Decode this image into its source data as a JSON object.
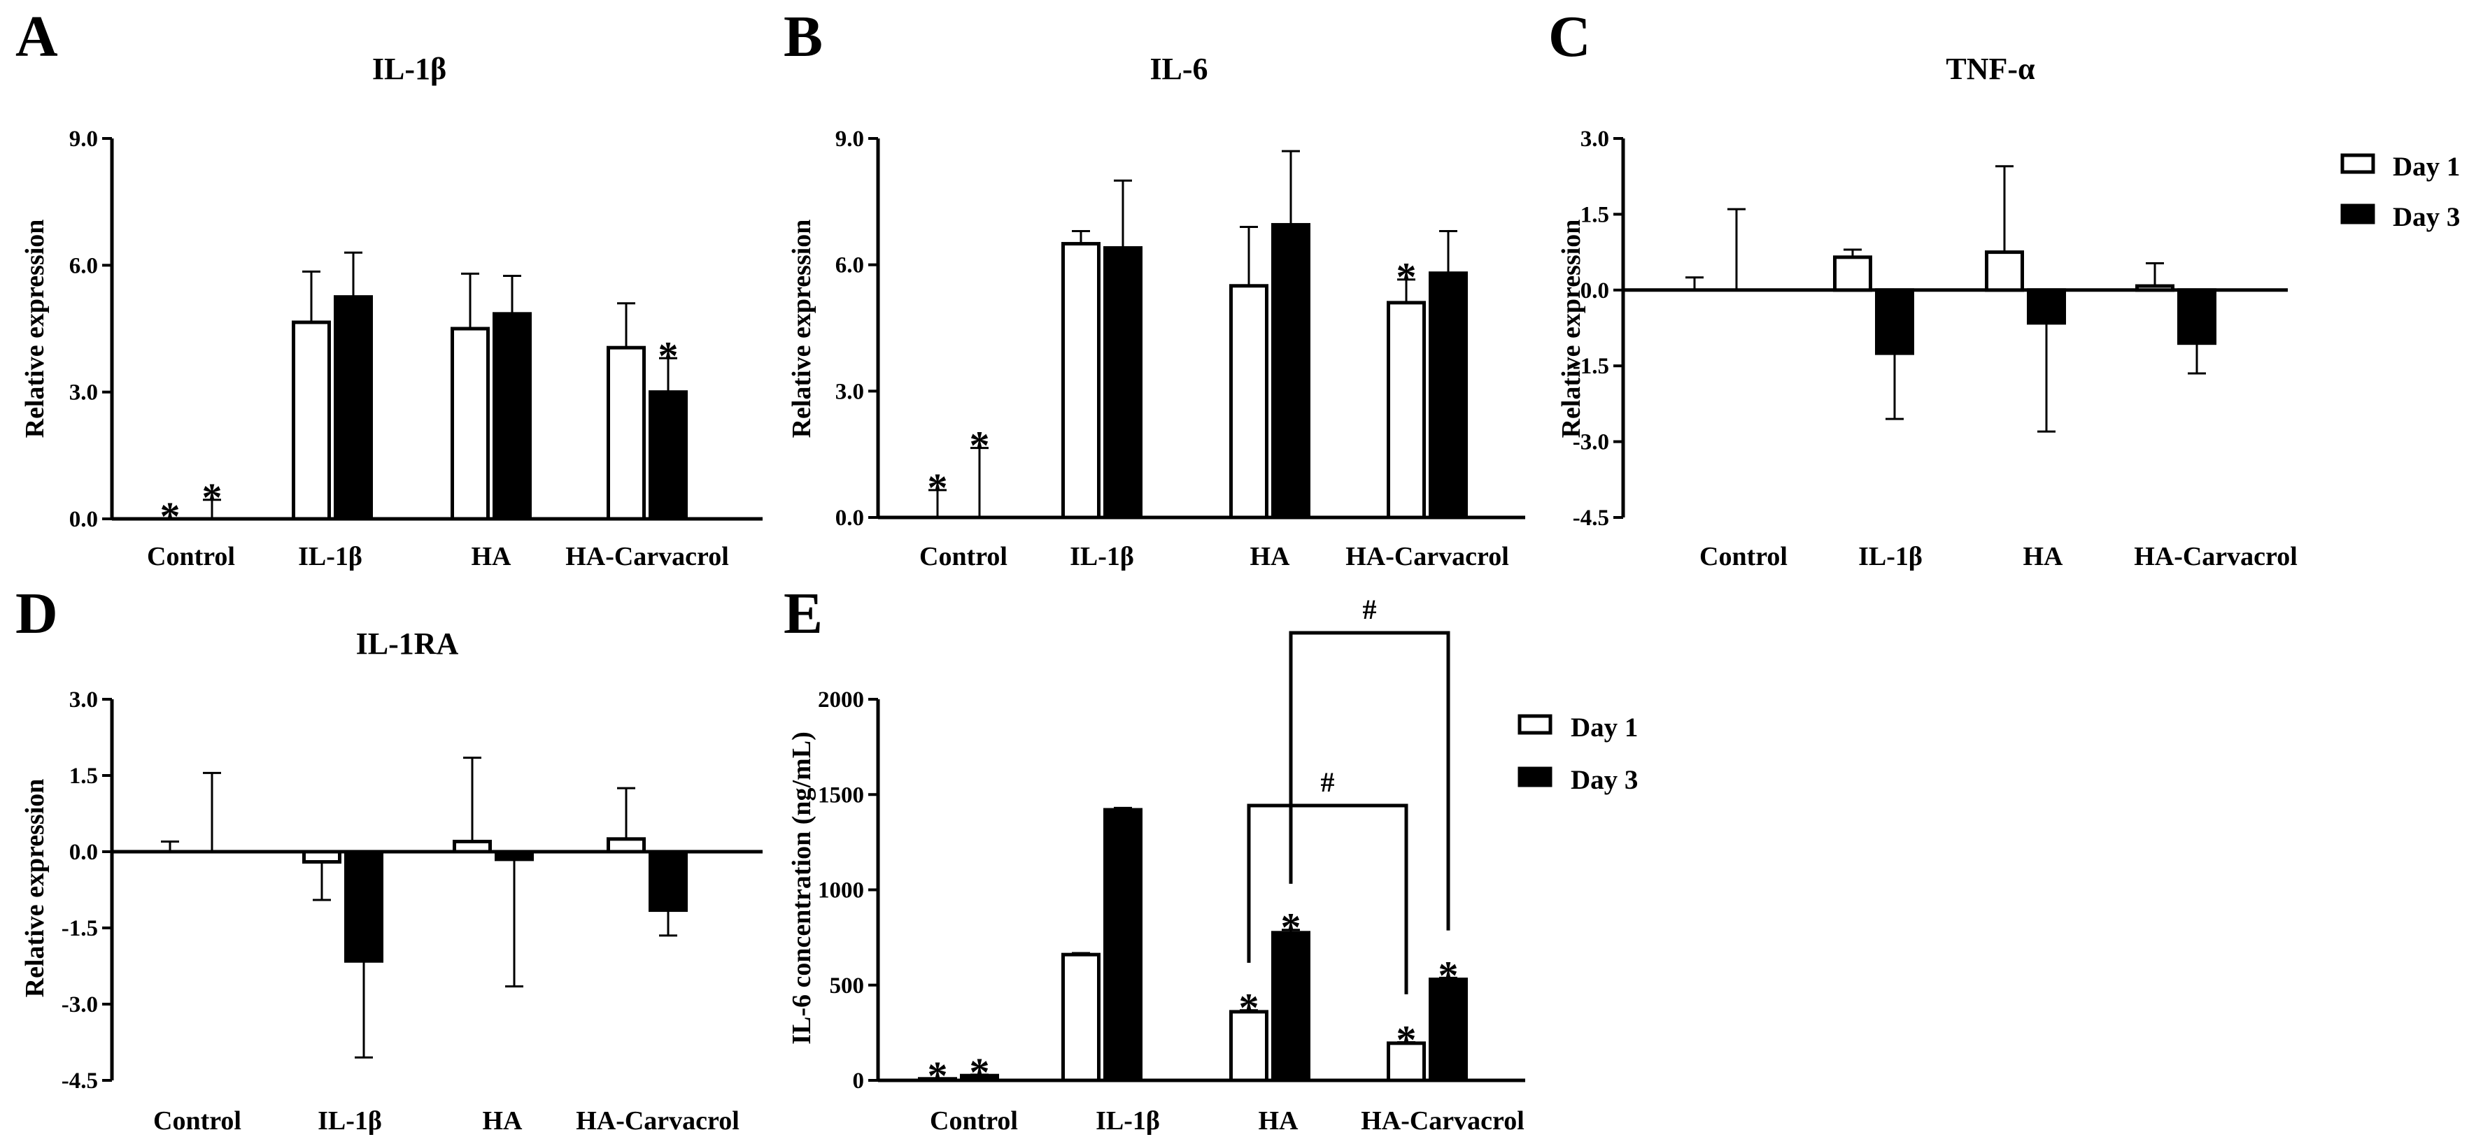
{
  "chart_data": [
    {
      "panel": "A",
      "type": "bar",
      "title": "IL-1β",
      "ylabel": "Relative expression",
      "ylim": [
        0,
        9
      ],
      "yticks": [
        "0.0",
        "3.0",
        "6.0",
        "9.0"
      ],
      "categories": [
        "Control",
        "IL-1β",
        "HA",
        "HA-Carvacrol"
      ],
      "series": [
        {
          "name": "Day 1",
          "values": [
            0,
            4.65,
            4.5,
            4.05
          ],
          "errors": [
            0,
            1.2,
            1.3,
            1.05
          ]
        },
        {
          "name": "Day 3",
          "values": [
            0,
            5.25,
            4.85,
            3.0
          ],
          "errors": [
            0.45,
            1.05,
            0.9,
            0.8
          ]
        }
      ],
      "annotations": [
        {
          "text": "*",
          "category": 0,
          "series": 0
        },
        {
          "text": "*",
          "category": 0,
          "series": 1
        },
        {
          "text": "*",
          "category": 3,
          "series": 1
        }
      ]
    },
    {
      "panel": "B",
      "type": "bar",
      "title": "IL-6",
      "ylabel": "Relative expression",
      "ylim": [
        0,
        9
      ],
      "yticks": [
        "0.0",
        "3.0",
        "6.0",
        "9.0"
      ],
      "categories": [
        "Control",
        "IL-1β",
        "HA",
        "HA-Carvacrol"
      ],
      "series": [
        {
          "name": "Day 1",
          "values": [
            0,
            6.5,
            5.5,
            5.1
          ],
          "errors": [
            0.65,
            0.3,
            1.4,
            0.55
          ]
        },
        {
          "name": "Day 3",
          "values": [
            0,
            6.4,
            6.95,
            5.8
          ],
          "errors": [
            1.65,
            1.6,
            1.75,
            1.0
          ]
        }
      ],
      "annotations": [
        {
          "text": "*",
          "category": 0,
          "series": 0
        },
        {
          "text": "*",
          "category": 0,
          "series": 1
        },
        {
          "text": "*",
          "category": 3,
          "series": 0
        }
      ]
    },
    {
      "panel": "C",
      "type": "bar",
      "title": "TNF-α",
      "ylabel": "Relative expression",
      "ylim": [
        -4.5,
        3.0
      ],
      "yticks": [
        "-4.5",
        "-3.0",
        "-1.5",
        "0.0",
        "1.5",
        "3.0"
      ],
      "categories": [
        "Control",
        "IL-1β",
        "HA",
        "HA-Carvacrol"
      ],
      "series": [
        {
          "name": "Day 1",
          "values": [
            0,
            0.65,
            0.75,
            0.08
          ],
          "errors": [
            0.25,
            0.15,
            1.7,
            0.45
          ]
        },
        {
          "name": "Day 3",
          "values": [
            0,
            -1.25,
            -0.65,
            -1.05
          ],
          "errors": [
            1.6,
            1.3,
            2.15,
            0.6
          ]
        }
      ],
      "legend": [
        "Day 1",
        "Day 3"
      ]
    },
    {
      "panel": "D",
      "type": "bar",
      "title": "IL-1RA",
      "ylabel": "Relative expression",
      "ylim": [
        -4.5,
        3.0
      ],
      "yticks": [
        "-4.5",
        "-3.0",
        "-1.5",
        "0.0",
        "1.5",
        "3.0"
      ],
      "categories": [
        "Control",
        "IL-1β",
        "HA",
        "HA-Carvacrol"
      ],
      "series": [
        {
          "name": "Day 1",
          "values": [
            0,
            -0.2,
            0.2,
            0.25
          ],
          "errors": [
            0.2,
            0.75,
            1.65,
            1.0
          ]
        },
        {
          "name": "Day 3",
          "values": [
            0,
            -2.15,
            -0.15,
            -1.15
          ],
          "errors": [
            1.55,
            1.9,
            2.5,
            0.5
          ]
        }
      ]
    },
    {
      "panel": "E",
      "type": "bar",
      "title": "",
      "ylabel": "IL-6 concentration (ng/mL)",
      "ylim": [
        0,
        2000
      ],
      "yticks": [
        "0",
        "500",
        "1000",
        "1500",
        "2000"
      ],
      "categories": [
        "Control",
        "IL-1β",
        "HA",
        "HA-Carvacrol"
      ],
      "series": [
        {
          "name": "Day 1",
          "values": [
            8,
            660,
            360,
            195
          ],
          "errors": [
            3,
            8,
            8,
            5
          ]
        },
        {
          "name": "Day 3",
          "values": [
            25,
            1420,
            775,
            530
          ],
          "errors": [
            5,
            10,
            15,
            8
          ]
        }
      ],
      "annotations": [
        {
          "text": "*",
          "category": 0,
          "series": 0
        },
        {
          "text": "*",
          "category": 0,
          "series": 1
        },
        {
          "text": "*",
          "category": 2,
          "series": 0
        },
        {
          "text": "*",
          "category": 2,
          "series": 1
        },
        {
          "text": "*",
          "category": 3,
          "series": 0
        },
        {
          "text": "*",
          "category": 3,
          "series": 1
        }
      ],
      "brackets": [
        {
          "text": "#",
          "from": {
            "category": 2,
            "series": 0
          },
          "to": {
            "category": 3,
            "series": 0
          }
        },
        {
          "text": "#",
          "from": {
            "category": 2,
            "series": 1
          },
          "to": {
            "category": 3,
            "series": 1
          }
        }
      ],
      "legend": [
        "Day 1",
        "Day 3"
      ]
    }
  ]
}
